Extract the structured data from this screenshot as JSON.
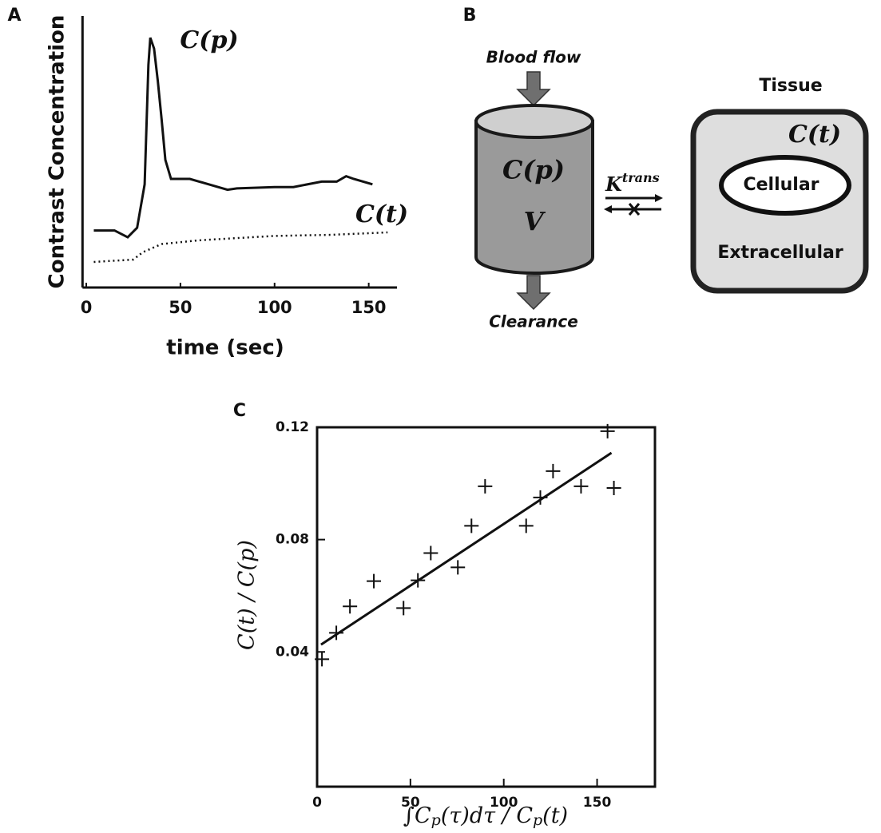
{
  "chart_data": [
    {
      "type": "line",
      "panel": "A",
      "ylabel": "Contrast  Concentration",
      "xlabel": "time (sec)",
      "xlim": [
        -2,
        165
      ],
      "xticks": [
        0,
        50,
        100,
        150
      ],
      "ylim": [
        0,
        100
      ],
      "series": [
        {
          "name": "C(p)",
          "color": "#111111",
          "dash": "solid",
          "x": [
            4,
            15,
            22,
            27,
            31,
            33,
            34,
            36,
            38,
            40,
            42,
            45,
            50,
            55,
            60,
            70,
            75,
            80,
            100,
            110,
            125,
            133,
            138,
            142,
            152
          ],
          "values": [
            21,
            21,
            18.5,
            22,
            38,
            82,
            92,
            88,
            76,
            62,
            47,
            40,
            40,
            40,
            39,
            37,
            36,
            36.5,
            37,
            37,
            39,
            39,
            41,
            40,
            38
          ]
        },
        {
          "name": "C(t)",
          "color": "#111111",
          "dash": "dotted",
          "x": [
            4,
            25,
            30,
            40,
            60,
            100,
            130,
            160
          ],
          "values": [
            9.4,
            10.3,
            13,
            16,
            17.4,
            19,
            19.4,
            20.3
          ]
        }
      ]
    },
    {
      "type": "scatter",
      "panel": "C",
      "ylabel": "C(t) / C(p)",
      "xlabel": [
        "∫C",
        "p",
        "(τ)dτ / C",
        "p",
        "(t)"
      ],
      "xlim": [
        0,
        181
      ],
      "xticks": [
        0,
        50,
        100,
        150
      ],
      "ylim": [
        -0.008,
        0.12
      ],
      "yticks": [
        0.04,
        0.08,
        0.12
      ],
      "series": [
        {
          "color": "#111111",
          "x": [
            2.6,
            10.3,
            17.6,
            30.4,
            46.3,
            54,
            60.9,
            75.4,
            82.7,
            90,
            112,
            119.6,
            126.4,
            141.4,
            155.6,
            159
          ],
          "values": [
            0.0374,
            0.0468,
            0.0562,
            0.0652,
            0.0556,
            0.0655,
            0.0752,
            0.0701,
            0.0849,
            0.099,
            0.0849,
            0.095,
            0.1044,
            0.099,
            0.1186,
            0.0984
          ]
        }
      ],
      "fit": {
        "color": "#111111",
        "x": [
          2.1,
          157.7
        ],
        "values": [
          0.0426,
          0.1109
        ]
      }
    }
  ],
  "diagram": {
    "panel": "B",
    "inflow": "Blood flow",
    "plasma_label": "C(p)",
    "volume": "V",
    "outflow": "Clearance",
    "rate": {
      "base": "K",
      "superscript": "trans"
    },
    "tissue": {
      "title": "Tissue",
      "concentration": "C(t)",
      "inner": "Cellular",
      "outer": "Extracellular"
    }
  }
}
